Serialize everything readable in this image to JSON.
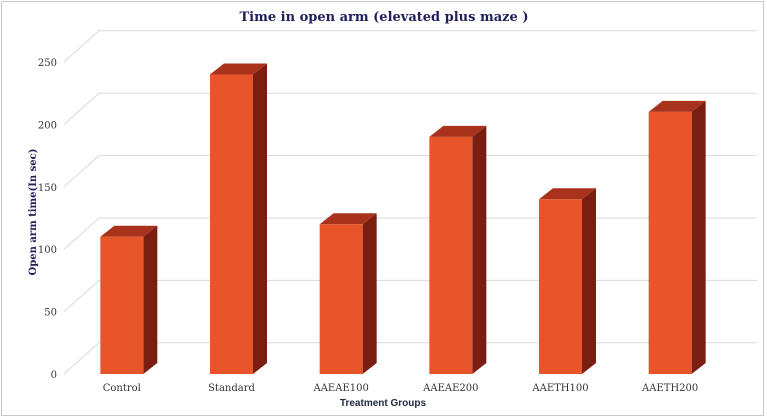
{
  "chart_data": {
    "type": "bar",
    "title": "Time in open arm (elevated plus maze )",
    "xlabel": "Treatment Groups",
    "ylabel": "Open arm time(In sec)",
    "categories": [
      "Control",
      "Standard",
      "AAEAE100",
      "AAEAE200",
      "AAETH100",
      "AAETH200"
    ],
    "values": [
      110,
      240,
      120,
      190,
      140,
      210
    ],
    "ylim": [
      0,
      250
    ],
    "yticks": [
      "0",
      "50",
      "100",
      "150",
      "200",
      "250"
    ],
    "grid": true,
    "legend": "none",
    "style": "3d-column",
    "colors": {
      "front": "#e8552a",
      "side": "#7a1e12",
      "top": "#a8321c"
    }
  }
}
